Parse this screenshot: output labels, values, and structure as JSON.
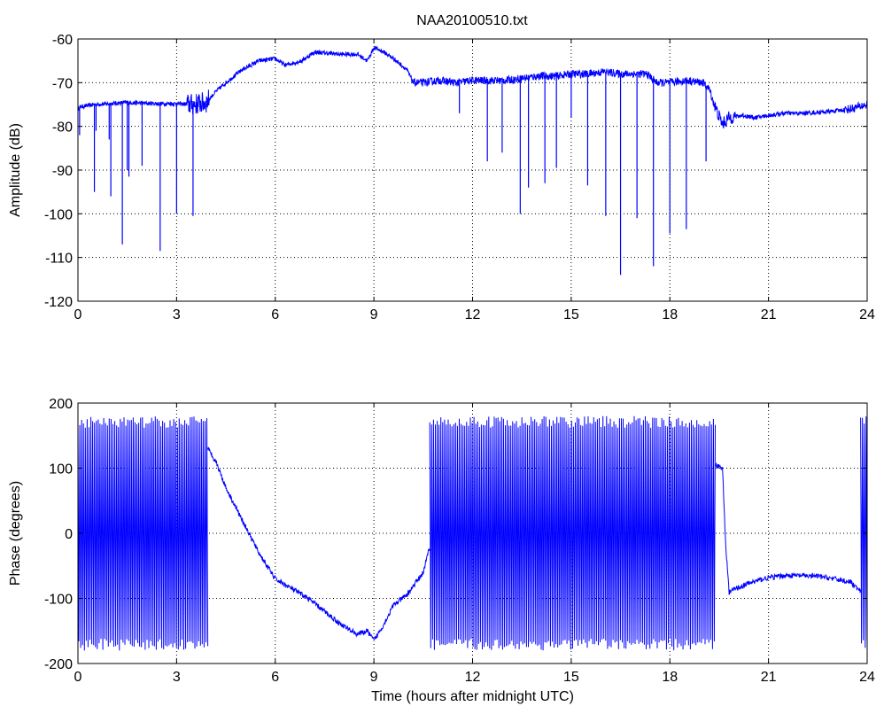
{
  "figure": {
    "title": "NAA20100510.txt"
  },
  "colors": {
    "line": "#0000ff",
    "axes": "#000000",
    "grid": "#000000",
    "background": "#ffffff"
  },
  "chart_data": [
    {
      "type": "line",
      "title": "NAA20100510.txt",
      "xlabel": "",
      "ylabel": "Amplitude (dB)",
      "xlim": [
        0,
        24
      ],
      "ylim": [
        -120,
        -60
      ],
      "xticks": [
        0,
        3,
        6,
        9,
        12,
        15,
        18,
        21,
        24
      ],
      "yticks": [
        -120,
        -110,
        -100,
        -90,
        -80,
        -70,
        -60
      ],
      "grid": true,
      "series": [
        {
          "color": "#0000ff",
          "x": [
            0,
            0.1,
            0.5,
            1.0,
            1.5,
            2.0,
            2.5,
            3.0,
            3.5,
            3.9,
            4.2,
            4.5,
            5.0,
            5.5,
            6.0,
            6.3,
            6.8,
            7.2,
            7.5,
            8.0,
            8.5,
            8.8,
            9.0,
            9.3,
            9.6,
            10.0,
            10.2,
            10.5,
            11.0,
            11.5,
            12.0,
            12.5,
            13.0,
            13.5,
            14.0,
            14.5,
            15.0,
            15.5,
            16.0,
            16.5,
            17.0,
            17.3,
            17.6,
            18.0,
            18.5,
            19.0,
            19.2,
            19.4,
            19.6,
            19.8,
            20.2,
            20.6,
            21.0,
            21.5,
            22.0,
            22.5,
            23.0,
            23.5,
            24.0
          ],
          "y": [
            -76,
            -75.5,
            -75,
            -74.8,
            -74.5,
            -74.7,
            -74.8,
            -74.8,
            -75,
            -74.5,
            -72,
            -70,
            -67,
            -65,
            -64.5,
            -66,
            -65,
            -63,
            -63.2,
            -63.5,
            -63.5,
            -65,
            -62,
            -63,
            -64.5,
            -67,
            -70,
            -70,
            -69.5,
            -70,
            -69.5,
            -69.5,
            -69.5,
            -69,
            -68.5,
            -68.5,
            -68,
            -68,
            -67.5,
            -68,
            -68,
            -68,
            -70,
            -70,
            -69.5,
            -70,
            -71.5,
            -76,
            -79.5,
            -78,
            -77.5,
            -78,
            -77.5,
            -77,
            -77,
            -76.8,
            -76.5,
            -76,
            -75
          ]
        }
      ],
      "spikes": [
        {
          "x": 0.05,
          "y": -82
        },
        {
          "x": 0.5,
          "y": -95
        },
        {
          "x": 0.55,
          "y": -81
        },
        {
          "x": 0.95,
          "y": -83
        },
        {
          "x": 1.0,
          "y": -96
        },
        {
          "x": 1.35,
          "y": -107
        },
        {
          "x": 1.5,
          "y": -90
        },
        {
          "x": 1.55,
          "y": -91.5
        },
        {
          "x": 1.95,
          "y": -89
        },
        {
          "x": 2.5,
          "y": -108.5
        },
        {
          "x": 3.0,
          "y": -100
        },
        {
          "x": 3.5,
          "y": -100.5
        },
        {
          "x": 11.6,
          "y": -77
        },
        {
          "x": 12.45,
          "y": -88
        },
        {
          "x": 12.9,
          "y": -86
        },
        {
          "x": 13.45,
          "y": -100
        },
        {
          "x": 13.7,
          "y": -94
        },
        {
          "x": 14.2,
          "y": -93
        },
        {
          "x": 14.55,
          "y": -89.5
        },
        {
          "x": 15.0,
          "y": -78
        },
        {
          "x": 15.5,
          "y": -93.5
        },
        {
          "x": 16.05,
          "y": -100.5
        },
        {
          "x": 16.5,
          "y": -114
        },
        {
          "x": 17.0,
          "y": -101
        },
        {
          "x": 17.5,
          "y": -112
        },
        {
          "x": 18.0,
          "y": -104.5
        },
        {
          "x": 18.5,
          "y": -103.5
        },
        {
          "x": 19.1,
          "y": -88
        }
      ]
    },
    {
      "type": "line",
      "title": "",
      "xlabel": "Time (hours after midnight UTC)",
      "ylabel": "Phase (degrees)",
      "xlim": [
        0,
        24
      ],
      "ylim": [
        -200,
        200
      ],
      "xticks": [
        0,
        3,
        6,
        9,
        12,
        15,
        18,
        21,
        24
      ],
      "yticks": [
        -200,
        -100,
        0,
        100,
        200
      ],
      "grid": true,
      "series": [
        {
          "color": "#0000ff",
          "x": [
            3.95,
            4.2,
            4.5,
            5.0,
            5.5,
            6.0,
            6.5,
            7.0,
            7.5,
            8.0,
            8.5,
            8.8,
            9.0,
            9.3,
            9.6,
            10.0,
            10.5,
            10.7
          ],
          "y": [
            130,
            110,
            70,
            20,
            -30,
            -70,
            -85,
            -100,
            -120,
            -140,
            -155,
            -150,
            -165,
            -140,
            -110,
            -95,
            -60,
            -20
          ]
        },
        {
          "color": "#0000ff",
          "x": [
            19.4,
            19.6,
            19.7,
            19.8,
            20.0,
            20.5,
            21.0,
            21.5,
            22.0,
            22.5,
            23.0,
            23.5,
            23.8
          ],
          "y": [
            105,
            100,
            -20,
            -90,
            -85,
            -75,
            -68,
            -65,
            -65,
            -66,
            -70,
            -75,
            -90
          ]
        }
      ],
      "wrapped_segments": [
        {
          "x": [
            0,
            3.95
          ],
          "y": [
            -180,
            180
          ]
        },
        {
          "x": [
            10.7,
            19.4
          ],
          "y": [
            -180,
            180
          ]
        },
        {
          "x": [
            23.8,
            24
          ],
          "y": [
            -180,
            180
          ]
        }
      ]
    }
  ]
}
